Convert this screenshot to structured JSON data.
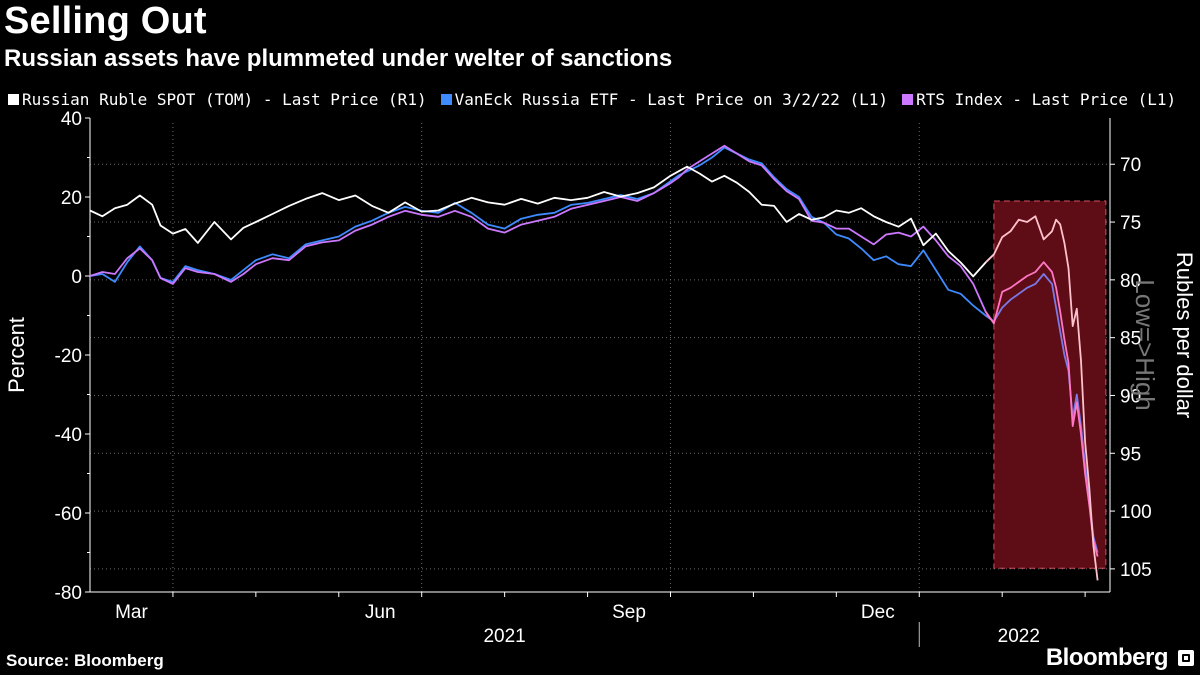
{
  "header": {
    "title": "Selling Out",
    "subtitle": "Russian assets have plummeted under welter of sanctions"
  },
  "footer": {
    "source": "Source: Bloomberg",
    "brand": "Bloomberg"
  },
  "colors": {
    "background": "#000000",
    "ruble": "#ffffff",
    "etf": "#3d8bff",
    "rts": "#cc77ff",
    "highlight_fill": "#5e0d16",
    "highlight_border": "#d0505e",
    "highlight_ruble": "#ffc2cc",
    "highlight_etf": "#7a7ae8",
    "highlight_rts": "#ff77c4",
    "grid": "#6a6a6a",
    "annotation": "#777777"
  },
  "chart_data": {
    "type": "line",
    "legend": [
      {
        "key": "ruble",
        "label": "Russian Ruble SPOT (TOM) - Last Price (R1)"
      },
      {
        "key": "etf",
        "label": "VanEck Russia ETF - Last Price on 3/2/22 (L1)"
      },
      {
        "key": "rts",
        "label": "RTS Index - Last Price (L1)"
      }
    ],
    "left_axis": {
      "label": "Percent",
      "range": [
        -80,
        40
      ],
      "ticks": [
        "40",
        "20",
        "0",
        "-20",
        "-40",
        "-60",
        "-80"
      ],
      "tick_values": [
        40,
        20,
        0,
        -20,
        -40,
        -60,
        -80
      ]
    },
    "right_axis": {
      "label": "Rubles per dollar",
      "range": [
        66,
        107
      ],
      "inverted": true,
      "ticks": [
        "70",
        "75",
        "80",
        "85",
        "90",
        "95",
        "100",
        "105"
      ],
      "tick_values": [
        70,
        75,
        80,
        85,
        90,
        95,
        100,
        105
      ]
    },
    "right_axis_annotation": "Low=>High",
    "x_axis": {
      "domain": [
        0,
        12.3
      ],
      "month_ticks": [
        {
          "label": "Mar",
          "x": 0.5
        },
        {
          "label": "Jun",
          "x": 3.5
        },
        {
          "label": "Sep",
          "x": 6.5
        },
        {
          "label": "Dec",
          "x": 9.5
        }
      ],
      "minor_ticks": [
        1,
        2,
        3,
        4,
        5,
        6,
        7,
        8,
        9,
        10,
        11,
        12
      ],
      "year_labels": [
        {
          "label": "2021",
          "x": 5.0
        },
        {
          "label": "2022",
          "x": 11.2
        }
      ],
      "year_divider": 10.0
    },
    "gridlines_x": [
      1,
      4,
      7,
      10
    ],
    "highlight_range": {
      "x_start": 10.9,
      "x_end": 12.25,
      "y_top": 19,
      "y_bottom": -74
    },
    "series": [
      {
        "name": "Russian Ruble SPOT (TOM) - Last Price (R1)",
        "key": "ruble",
        "axis": "right",
        "x": [
          0,
          0.15,
          0.3,
          0.45,
          0.6,
          0.75,
          0.85,
          1.0,
          1.15,
          1.3,
          1.5,
          1.7,
          1.85,
          2.0,
          2.2,
          2.4,
          2.6,
          2.8,
          3.0,
          3.2,
          3.4,
          3.6,
          3.8,
          4.0,
          4.2,
          4.4,
          4.6,
          4.8,
          5.0,
          5.2,
          5.4,
          5.6,
          5.8,
          6.0,
          6.2,
          6.4,
          6.6,
          6.8,
          7.0,
          7.1,
          7.2,
          7.35,
          7.5,
          7.65,
          7.8,
          7.95,
          8.1,
          8.25,
          8.4,
          8.55,
          8.7,
          8.85,
          9.0,
          9.15,
          9.3,
          9.45,
          9.6,
          9.75,
          9.9,
          10.05,
          10.2,
          10.35,
          10.5,
          10.65,
          10.8,
          10.9,
          11.0,
          11.1,
          11.2,
          11.3,
          11.4,
          11.5,
          11.6,
          11.65,
          11.7,
          11.75,
          11.8,
          11.85,
          11.9,
          11.95,
          12.0,
          12.05,
          12.1,
          12.15
        ],
        "values": [
          74.0,
          74.5,
          73.8,
          73.5,
          72.7,
          73.5,
          75.3,
          76.0,
          75.6,
          76.8,
          75.0,
          76.5,
          75.5,
          75.0,
          74.3,
          73.6,
          73.0,
          72.5,
          73.1,
          72.7,
          73.6,
          74.2,
          73.3,
          74.1,
          74.0,
          73.4,
          72.9,
          73.3,
          73.5,
          73.0,
          73.4,
          72.9,
          73.1,
          72.9,
          72.4,
          72.8,
          72.5,
          72.0,
          71.0,
          70.6,
          70.2,
          70.8,
          71.5,
          71.0,
          71.6,
          72.4,
          73.5,
          73.6,
          75.0,
          74.3,
          74.8,
          74.6,
          74.0,
          74.2,
          73.8,
          74.5,
          75.0,
          75.4,
          74.7,
          77.0,
          76.0,
          77.5,
          78.5,
          79.7,
          78.5,
          77.8,
          76.3,
          75.8,
          74.8,
          75.0,
          74.5,
          76.5,
          75.8,
          74.8,
          75.2,
          76.8,
          79.0,
          84.0,
          82.5,
          87.0,
          94.0,
          98.0,
          103.0,
          106.0
        ]
      },
      {
        "name": "VanEck Russia ETF - Last Price on 3/2/22 (L1)",
        "key": "etf",
        "axis": "left",
        "x": [
          0,
          0.15,
          0.3,
          0.45,
          0.6,
          0.75,
          0.85,
          1.0,
          1.15,
          1.3,
          1.5,
          1.7,
          1.85,
          2.0,
          2.2,
          2.4,
          2.6,
          2.8,
          3.0,
          3.2,
          3.4,
          3.6,
          3.8,
          4.0,
          4.2,
          4.4,
          4.6,
          4.8,
          5.0,
          5.2,
          5.4,
          5.6,
          5.8,
          6.0,
          6.2,
          6.4,
          6.6,
          6.8,
          7.0,
          7.1,
          7.2,
          7.35,
          7.5,
          7.65,
          7.8,
          7.95,
          8.1,
          8.25,
          8.4,
          8.55,
          8.7,
          8.85,
          9.0,
          9.15,
          9.3,
          9.45,
          9.6,
          9.75,
          9.9,
          10.05,
          10.2,
          10.35,
          10.5,
          10.65,
          10.8,
          10.9,
          11.0,
          11.1,
          11.2,
          11.3,
          11.4,
          11.5,
          11.6,
          11.65,
          11.7,
          11.75,
          11.8,
          11.85,
          11.9,
          11.95,
          12.0,
          12.05,
          12.1,
          12.15
        ],
        "values": [
          0,
          0.5,
          -1.5,
          3.5,
          7.5,
          4.0,
          -0.5,
          -1.5,
          2.5,
          1.5,
          0.5,
          -1.0,
          1.5,
          4.0,
          5.5,
          4.5,
          8.0,
          9.0,
          10.0,
          12.5,
          14.0,
          16.0,
          17.5,
          16.5,
          16.0,
          18.5,
          16.0,
          13.0,
          12.0,
          14.5,
          15.5,
          16.0,
          18.0,
          18.5,
          19.5,
          20.5,
          19.5,
          21.0,
          24.0,
          25.5,
          26.5,
          28.0,
          30.0,
          32.5,
          31.0,
          29.5,
          28.5,
          25.0,
          22.0,
          20.0,
          15.0,
          13.5,
          10.5,
          9.5,
          7.0,
          4.0,
          5.0,
          3.0,
          2.5,
          6.5,
          1.5,
          -3.5,
          -4.5,
          -7.5,
          -10.0,
          -11.5,
          -8.0,
          -6.0,
          -4.5,
          -3.0,
          -2.0,
          0.5,
          -2.0,
          -8.0,
          -14.0,
          -20.0,
          -24.0,
          -36.0,
          -30.0,
          -38.0,
          -48.0,
          -57.0,
          -66.0,
          -70.0
        ]
      },
      {
        "name": "RTS Index - Last Price (L1)",
        "key": "rts",
        "axis": "left",
        "x": [
          0,
          0.15,
          0.3,
          0.45,
          0.6,
          0.75,
          0.85,
          1.0,
          1.15,
          1.3,
          1.5,
          1.7,
          1.85,
          2.0,
          2.2,
          2.4,
          2.6,
          2.8,
          3.0,
          3.2,
          3.4,
          3.6,
          3.8,
          4.0,
          4.2,
          4.4,
          4.6,
          4.8,
          5.0,
          5.2,
          5.4,
          5.6,
          5.8,
          6.0,
          6.2,
          6.4,
          6.6,
          6.8,
          7.0,
          7.1,
          7.2,
          7.35,
          7.5,
          7.65,
          7.8,
          7.95,
          8.1,
          8.25,
          8.4,
          8.55,
          8.7,
          8.85,
          9.0,
          9.15,
          9.3,
          9.45,
          9.6,
          9.75,
          9.9,
          10.05,
          10.2,
          10.35,
          10.5,
          10.65,
          10.8,
          10.9,
          11.0,
          11.1,
          11.2,
          11.3,
          11.4,
          11.5,
          11.6,
          11.65,
          11.7,
          11.75,
          11.8,
          11.85,
          11.9,
          11.95,
          12.0,
          12.05,
          12.1,
          12.15
        ],
        "values": [
          0,
          1.0,
          0.5,
          4.5,
          7.0,
          4.0,
          -0.5,
          -2.0,
          2.0,
          1.0,
          0.5,
          -1.5,
          0.5,
          3.0,
          4.5,
          4.0,
          7.5,
          8.5,
          9.0,
          11.5,
          13.0,
          15.0,
          16.5,
          15.5,
          15.0,
          16.5,
          15.0,
          12.0,
          11.0,
          13.0,
          14.0,
          15.0,
          17.0,
          18.0,
          19.0,
          20.0,
          19.0,
          21.0,
          23.5,
          25.0,
          27.0,
          29.0,
          31.0,
          33.0,
          31.0,
          29.0,
          28.0,
          24.5,
          21.5,
          19.5,
          14.0,
          13.5,
          12.0,
          12.0,
          10.0,
          8.0,
          10.5,
          11.0,
          10.0,
          12.5,
          9.0,
          5.0,
          2.5,
          -2.0,
          -9.0,
          -12.0,
          -4.0,
          -3.0,
          -1.5,
          0.0,
          1.0,
          3.5,
          1.0,
          -3.0,
          -9.0,
          -16.0,
          -22.0,
          -38.0,
          -32.0,
          -40.0,
          -50.0,
          -58.0,
          -67.0,
          -71.0
        ]
      }
    ]
  }
}
